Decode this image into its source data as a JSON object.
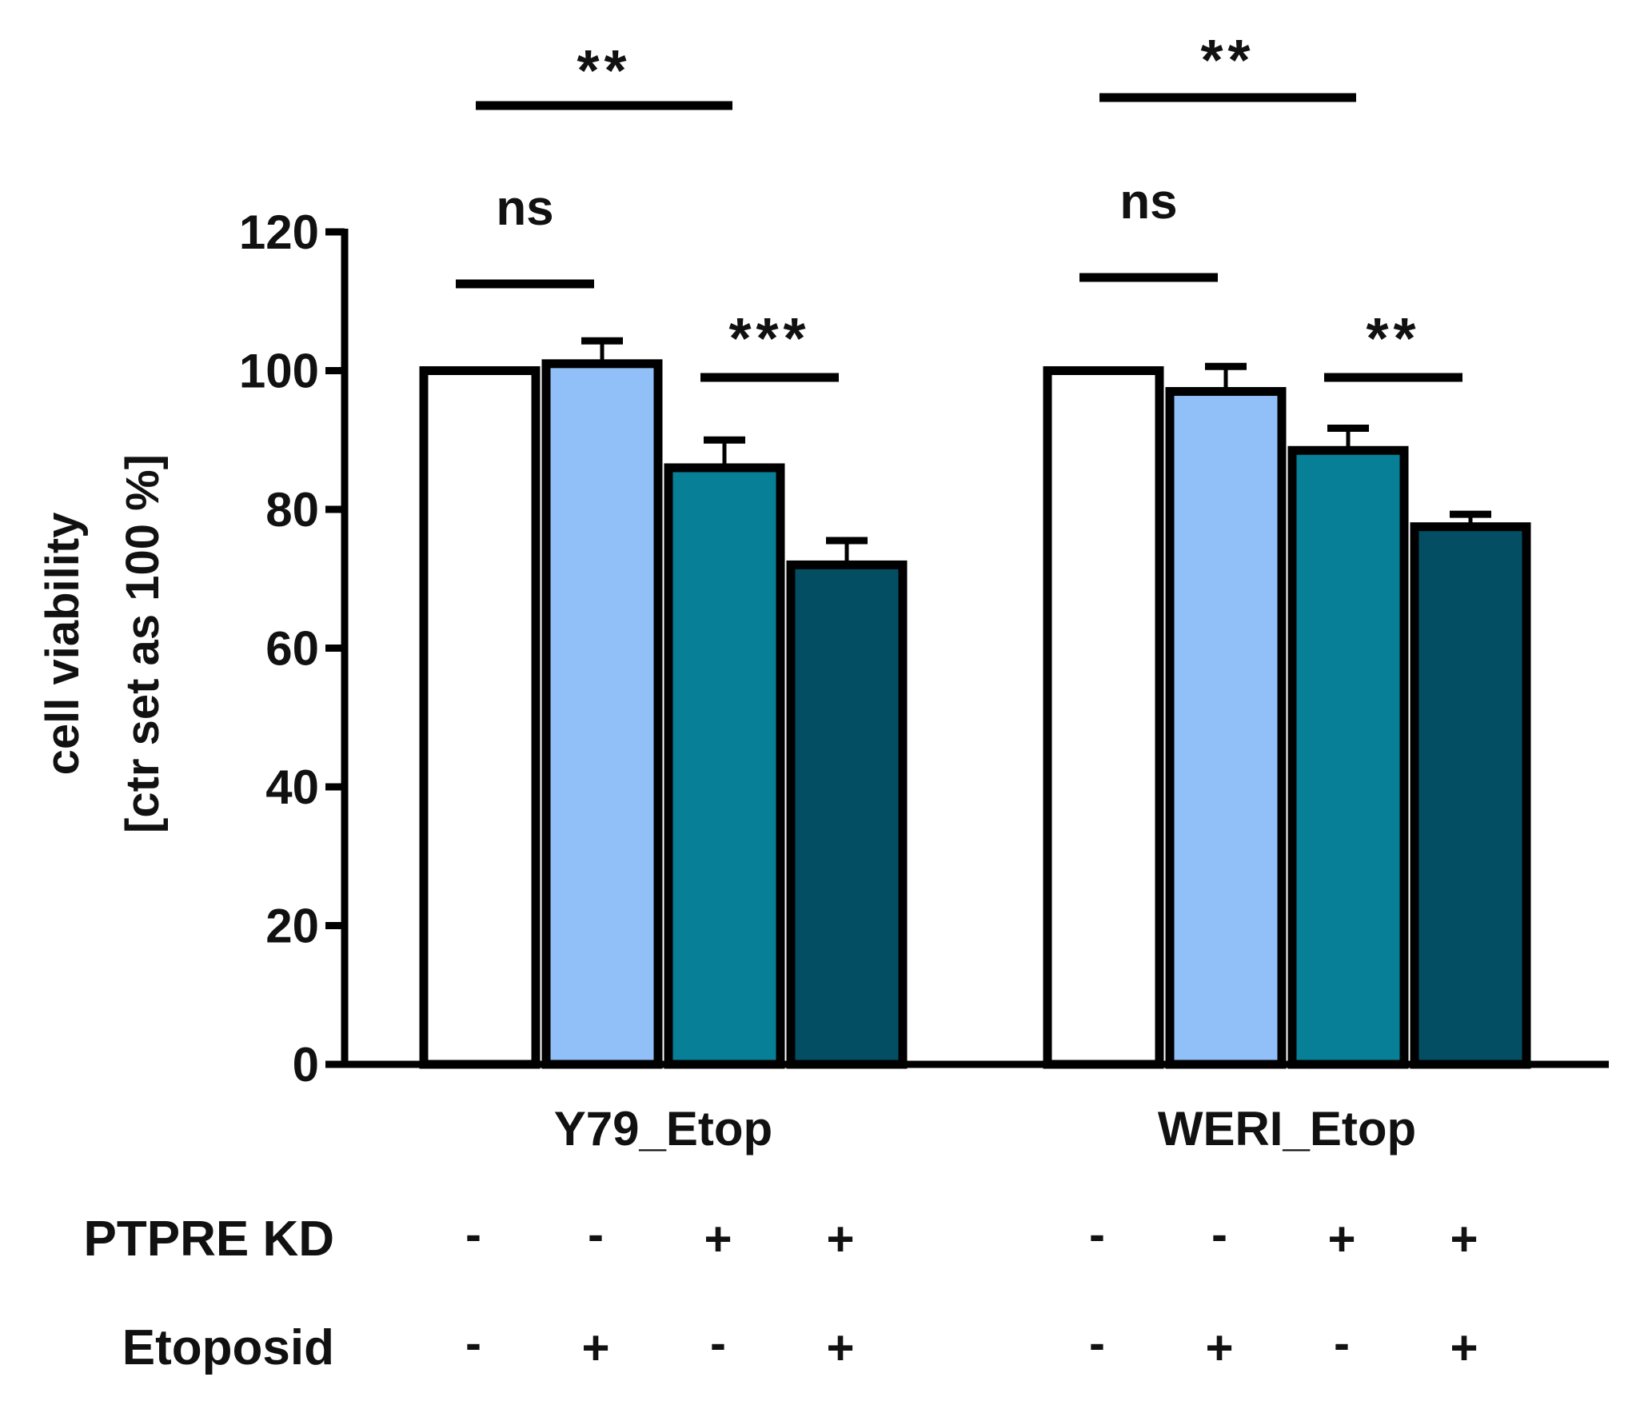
{
  "chart_data": {
    "type": "bar",
    "title": "",
    "ylabel": [
      "cell viability",
      "[ctr set as 100 %]"
    ],
    "xlabel": "",
    "ylim": [
      0,
      120
    ],
    "yticks": [
      0,
      20,
      40,
      60,
      80,
      100,
      120
    ],
    "grid": false,
    "groups": [
      {
        "label": "Y79_Etop",
        "values": [
          100,
          101,
          86,
          72
        ],
        "errors": [
          0,
          3.3,
          4,
          3.5
        ]
      },
      {
        "label": "WERI_Etop",
        "values": [
          100,
          97,
          88.5,
          77.5
        ],
        "errors": [
          0,
          3.6,
          3.2,
          1.8
        ]
      }
    ],
    "bar_colors": [
      "#ffffff",
      "#91bff7",
      "#067f97",
      "#034e63"
    ],
    "conditions": [
      {
        "label": "PTPRE KD",
        "values": [
          "-",
          "-",
          "+",
          "+"
        ]
      },
      {
        "label": "Etoposid",
        "values": [
          "-",
          "+",
          "-",
          "+"
        ]
      }
    ],
    "significance": [
      {
        "group": 0,
        "from": 0,
        "to": 1,
        "label": "ns"
      },
      {
        "group": 0,
        "from": 2,
        "to": 3,
        "label": "***"
      },
      {
        "group": 0,
        "from": 0,
        "to": 3,
        "label": "**"
      },
      {
        "group": 1,
        "from": 0,
        "to": 1,
        "label": "ns"
      },
      {
        "group": 1,
        "from": 2,
        "to": 3,
        "label": "**"
      },
      {
        "group": 1,
        "from": 0,
        "to": 3,
        "label": "**"
      }
    ]
  }
}
